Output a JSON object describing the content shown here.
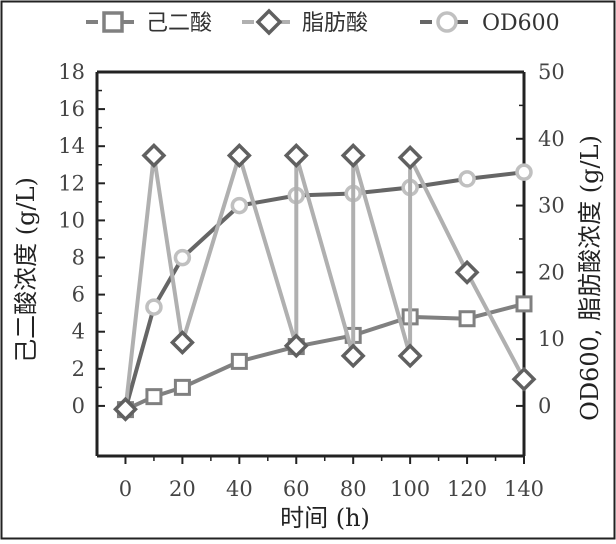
{
  "chart_data": {
    "type": "line",
    "xlabel": "时间 (h)",
    "ylabel_left": "己二酸浓度 (g/L)",
    "ylabel_right": "OD600, 脂肪酸浓度 (g/L)",
    "xlim": [
      -10,
      140
    ],
    "ylim_left": [
      -2.7,
      18
    ],
    "ylim_right": [
      -7.5,
      50
    ],
    "x_ticks": [
      "0",
      "20",
      "40",
      "60",
      "80",
      "100",
      "120",
      "140"
    ],
    "y_left_ticks": [
      "0",
      "2",
      "4",
      "6",
      "8",
      "10",
      "12",
      "14",
      "16",
      "18"
    ],
    "y_right_ticks": [
      "0",
      "10",
      "20",
      "30",
      "40",
      "50"
    ],
    "grid": false,
    "legend_position": "top",
    "series": [
      {
        "name": "己二酸",
        "axis": "left",
        "marker": "square",
        "color": "#808080",
        "x": [
          0,
          10,
          20,
          40,
          60,
          80,
          100,
          120,
          140
        ],
        "values": [
          -0.2,
          0.5,
          1.0,
          2.4,
          3.2,
          3.8,
          4.8,
          4.7,
          5.5
        ]
      },
      {
        "name": "脂肪酸",
        "axis": "right",
        "marker": "diamond",
        "color": "#b0b0b0",
        "marker_color": "#606060",
        "x": [
          0,
          10,
          20,
          40,
          60,
          60,
          80,
          80,
          100,
          100,
          120,
          140
        ],
        "values": [
          -0.5,
          37.5,
          9.5,
          37.5,
          9.0,
          37.5,
          7.5,
          37.5,
          7.5,
          37.2,
          20.0,
          4.0
        ]
      },
      {
        "name": "OD600",
        "axis": "right",
        "marker": "circle",
        "color": "#666666",
        "marker_color": "#c0c0c0",
        "x": [
          0,
          10,
          20,
          40,
          60,
          80,
          100,
          120,
          140
        ],
        "values": [
          -0.5,
          14.8,
          22.2,
          30.0,
          31.5,
          31.8,
          32.7,
          34.0,
          35.0
        ]
      }
    ]
  }
}
